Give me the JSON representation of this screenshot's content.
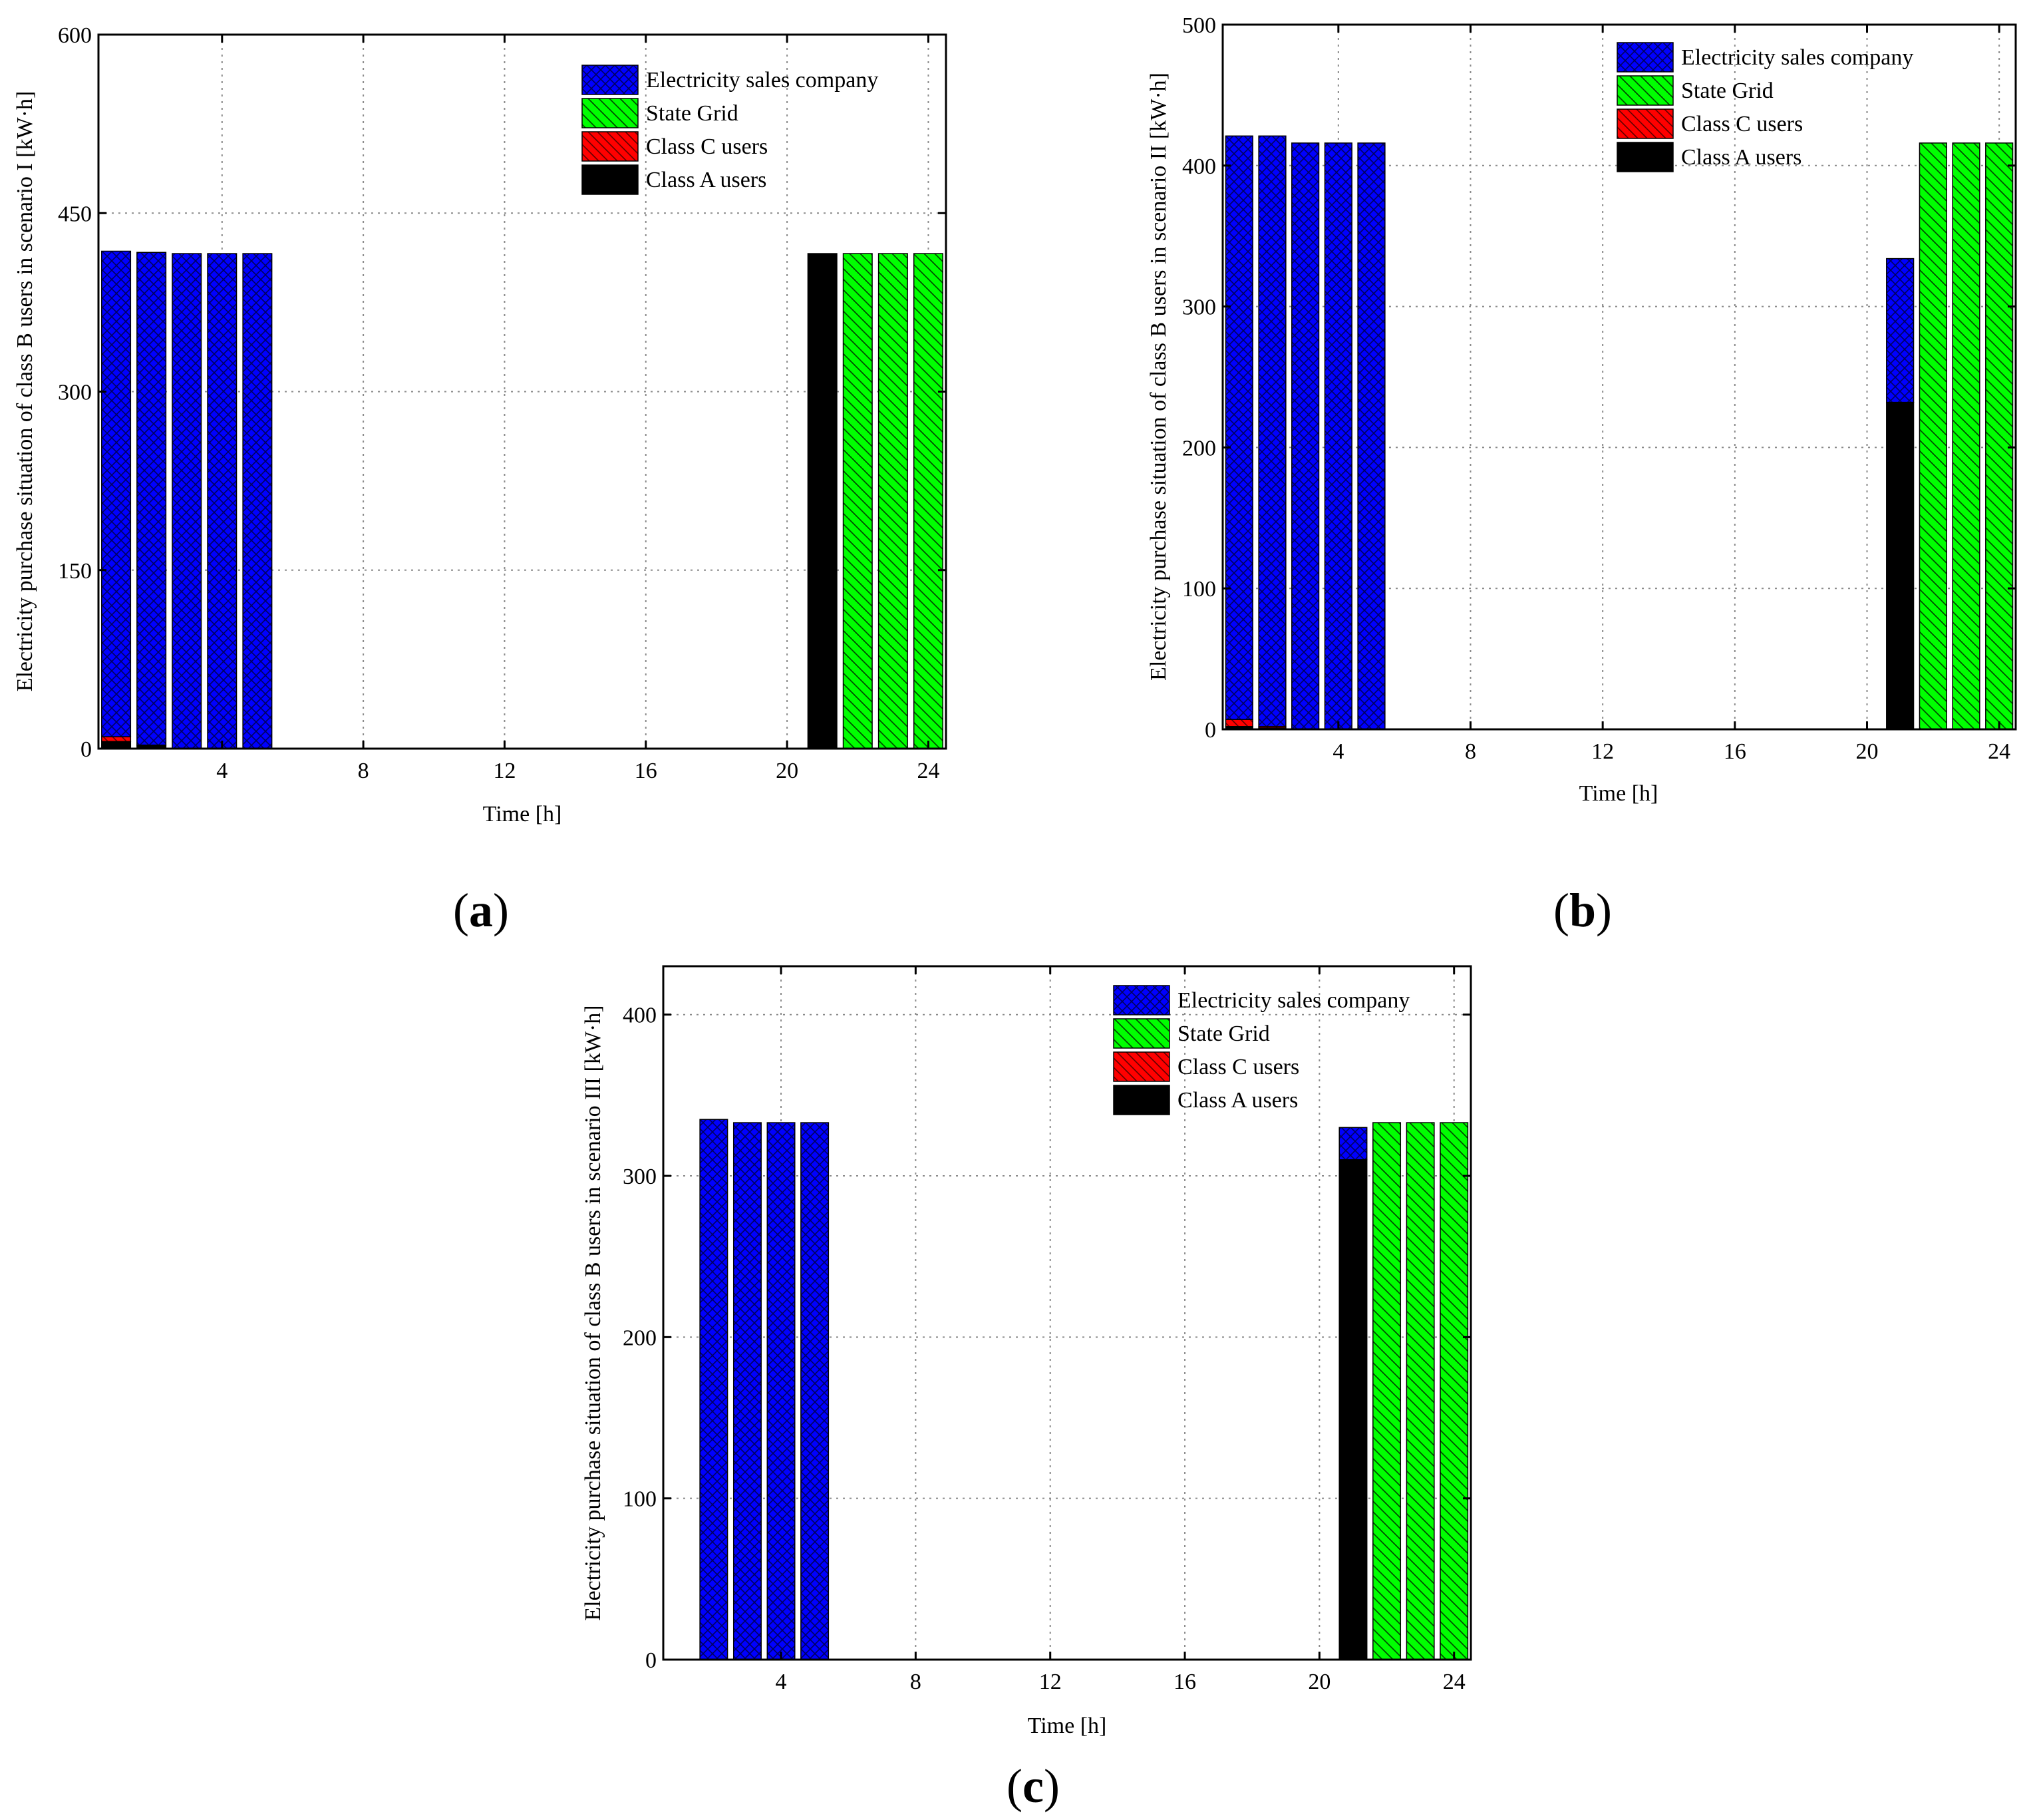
{
  "figure": {
    "panel_count": 3
  },
  "legend": {
    "items": [
      {
        "label": "Electricity sales company",
        "color": "#0000ff",
        "pattern": "crosshatch"
      },
      {
        "label": "State Grid",
        "color": "#00ff00",
        "pattern": "diagonal"
      },
      {
        "label": "Class C users",
        "color": "#ff0000",
        "pattern": "diagonal"
      },
      {
        "label": "Class A users",
        "color": "#000000",
        "pattern": "solid"
      }
    ]
  },
  "chart_data": [
    {
      "id": "a",
      "type": "bar",
      "stacked": true,
      "caption": "a",
      "title": "",
      "xlabel": "Time [h]",
      "ylabel": "Electricity purchase situation of class B users in scenario I [kW·h]",
      "xlim": [
        0.5,
        24.5
      ],
      "ylim": [
        0,
        600
      ],
      "xticks": [
        4,
        8,
        12,
        16,
        20,
        24
      ],
      "yticks": [
        0,
        150,
        300,
        450,
        600
      ],
      "grid": true,
      "legend_position": "top-right",
      "x": [
        1,
        2,
        3,
        4,
        5,
        6,
        7,
        8,
        9,
        10,
        11,
        12,
        13,
        14,
        15,
        16,
        17,
        18,
        19,
        20,
        21,
        22,
        23,
        24
      ],
      "series": [
        {
          "name": "Class A users",
          "values": [
            6,
            3,
            0,
            0,
            0,
            0,
            0,
            0,
            0,
            0,
            0,
            0,
            0,
            0,
            0,
            0,
            0,
            0,
            0,
            0,
            416,
            0,
            0,
            0
          ]
        },
        {
          "name": "Class C users",
          "values": [
            4,
            0,
            0,
            0,
            0,
            0,
            0,
            0,
            0,
            0,
            0,
            0,
            0,
            0,
            0,
            0,
            0,
            0,
            0,
            0,
            0,
            0,
            0,
            0
          ]
        },
        {
          "name": "Electricity sales company",
          "values": [
            408,
            414,
            416,
            416,
            416,
            0,
            0,
            0,
            0,
            0,
            0,
            0,
            0,
            0,
            0,
            0,
            0,
            0,
            0,
            0,
            0,
            0,
            0,
            0
          ]
        },
        {
          "name": "State Grid",
          "values": [
            0,
            0,
            0,
            0,
            0,
            0,
            0,
            0,
            0,
            0,
            0,
            0,
            0,
            0,
            0,
            0,
            0,
            0,
            0,
            0,
            0,
            416,
            416,
            416
          ]
        }
      ]
    },
    {
      "id": "b",
      "type": "bar",
      "stacked": true,
      "caption": "b",
      "title": "",
      "xlabel": "Time [h]",
      "ylabel": "Electricity purchase situation of class B users in scenario II [kW·h]",
      "xlim": [
        0.5,
        24.5
      ],
      "ylim": [
        0,
        500
      ],
      "xticks": [
        4,
        8,
        12,
        16,
        20,
        24
      ],
      "yticks": [
        0,
        100,
        200,
        300,
        400,
        500
      ],
      "grid": true,
      "legend_position": "top-right",
      "x": [
        1,
        2,
        3,
        4,
        5,
        6,
        7,
        8,
        9,
        10,
        11,
        12,
        13,
        14,
        15,
        16,
        17,
        18,
        19,
        20,
        21,
        22,
        23,
        24
      ],
      "series": [
        {
          "name": "Class A users",
          "values": [
            2,
            1,
            0,
            0,
            0,
            0,
            0,
            0,
            0,
            0,
            0,
            0,
            0,
            0,
            0,
            0,
            0,
            0,
            0,
            0,
            232,
            0,
            0,
            0
          ]
        },
        {
          "name": "Class C users",
          "values": [
            5,
            1,
            0,
            0,
            0,
            0,
            0,
            0,
            0,
            0,
            0,
            0,
            0,
            0,
            0,
            0,
            0,
            0,
            0,
            0,
            0,
            0,
            0,
            0
          ]
        },
        {
          "name": "Electricity sales company",
          "values": [
            414,
            419,
            416,
            416,
            416,
            0,
            0,
            0,
            0,
            0,
            0,
            0,
            0,
            0,
            0,
            0,
            0,
            0,
            0,
            0,
            102,
            0,
            0,
            0
          ]
        },
        {
          "name": "State Grid",
          "values": [
            0,
            0,
            0,
            0,
            0,
            0,
            0,
            0,
            0,
            0,
            0,
            0,
            0,
            0,
            0,
            0,
            0,
            0,
            0,
            0,
            0,
            416,
            416,
            416
          ]
        }
      ]
    },
    {
      "id": "c",
      "type": "bar",
      "stacked": true,
      "caption": "c",
      "title": "",
      "xlabel": "Time [h]",
      "ylabel": "Electricity purchase situation of class B users in scenario III [kW·h]",
      "xlim": [
        0.5,
        24.5
      ],
      "ylim": [
        0,
        430
      ],
      "xticks": [
        4,
        8,
        12,
        16,
        20,
        24
      ],
      "yticks": [
        0,
        100,
        200,
        300,
        400
      ],
      "grid": true,
      "legend_position": "top-right",
      "x": [
        1,
        2,
        3,
        4,
        5,
        6,
        7,
        8,
        9,
        10,
        11,
        12,
        13,
        14,
        15,
        16,
        17,
        18,
        19,
        20,
        21,
        22,
        23,
        24
      ],
      "series": [
        {
          "name": "Class A users",
          "values": [
            0,
            0,
            0,
            0,
            0,
            0,
            0,
            0,
            0,
            0,
            0,
            0,
            0,
            0,
            0,
            0,
            0,
            0,
            0,
            0,
            310,
            0,
            0,
            0
          ]
        },
        {
          "name": "Class C users",
          "values": [
            0,
            0,
            0,
            0,
            0,
            0,
            0,
            0,
            0,
            0,
            0,
            0,
            0,
            0,
            0,
            0,
            0,
            0,
            0,
            0,
            0,
            0,
            0,
            0
          ]
        },
        {
          "name": "Electricity sales company",
          "values": [
            0,
            335,
            333,
            333,
            333,
            0,
            0,
            0,
            0,
            0,
            0,
            0,
            0,
            0,
            0,
            0,
            0,
            0,
            0,
            0,
            20,
            0,
            0,
            0
          ]
        },
        {
          "name": "State Grid",
          "values": [
            0,
            0,
            0,
            0,
            0,
            0,
            0,
            0,
            0,
            0,
            0,
            0,
            0,
            0,
            0,
            0,
            0,
            0,
            0,
            0,
            0,
            333,
            333,
            333
          ]
        }
      ]
    }
  ]
}
